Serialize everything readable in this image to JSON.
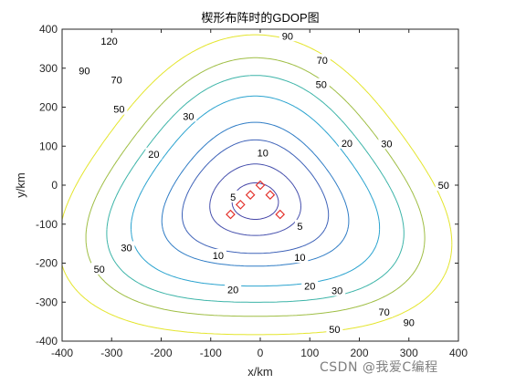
{
  "chart_data": {
    "type": "contour",
    "title": "楔形布阵时的GDOP图",
    "xlabel": "x/km",
    "ylabel": "y/km",
    "xlim": [
      -400,
      400
    ],
    "ylim": [
      -400,
      400
    ],
    "xticks": [
      -400,
      -300,
      -200,
      -100,
      0,
      100,
      200,
      300,
      400
    ],
    "yticks": [
      -400,
      -300,
      -200,
      -100,
      0,
      100,
      200,
      300,
      400
    ],
    "grid": false,
    "contour_levels": [
      5,
      10,
      20,
      30,
      50,
      70,
      90,
      120
    ],
    "level_colors": {
      "5": "#4646a8",
      "10": "#4650ad",
      "20": "#3e62b8",
      "30": "#2f7cc5",
      "50": "#2aa3cf",
      "70": "#3cb4a8",
      "90": "#9fbe44",
      "120": "#e4e52c"
    },
    "contour_labels": [
      {
        "level": 5,
        "x": -55,
        "y": -30,
        "text": "5"
      },
      {
        "level": 5,
        "x": 80,
        "y": -105,
        "text": "5"
      },
      {
        "level": 10,
        "x": 5,
        "y": 83,
        "text": "10"
      },
      {
        "level": 10,
        "x": -85,
        "y": -180,
        "text": "10"
      },
      {
        "level": 10,
        "x": 80,
        "y": -185,
        "text": "10"
      },
      {
        "level": 20,
        "x": -215,
        "y": 80,
        "text": "20"
      },
      {
        "level": 20,
        "x": 175,
        "y": 108,
        "text": "20"
      },
      {
        "level": 20,
        "x": -55,
        "y": -268,
        "text": "20"
      },
      {
        "level": 20,
        "x": 100,
        "y": -258,
        "text": "20"
      },
      {
        "level": 30,
        "x": -145,
        "y": 177,
        "text": "30"
      },
      {
        "level": 30,
        "x": 255,
        "y": 107,
        "text": "30"
      },
      {
        "level": 30,
        "x": -270,
        "y": -160,
        "text": "30"
      },
      {
        "level": 30,
        "x": 155,
        "y": -270,
        "text": "30"
      },
      {
        "level": 50,
        "x": -285,
        "y": 195,
        "text": "50"
      },
      {
        "level": 50,
        "x": 123,
        "y": 258,
        "text": "50"
      },
      {
        "level": 50,
        "x": 370,
        "y": 0,
        "text": "50"
      },
      {
        "level": 50,
        "x": -325,
        "y": -215,
        "text": "50"
      },
      {
        "level": 50,
        "x": 150,
        "y": -370,
        "text": "50"
      },
      {
        "level": 70,
        "x": -290,
        "y": 270,
        "text": "70"
      },
      {
        "level": 70,
        "x": 125,
        "y": 320,
        "text": "70"
      },
      {
        "level": 70,
        "x": 445,
        "y": 78,
        "text": "70"
      },
      {
        "level": 70,
        "x": -425,
        "y": -100,
        "text": "70"
      },
      {
        "level": 70,
        "x": 250,
        "y": -325,
        "text": "70"
      },
      {
        "level": 90,
        "x": -355,
        "y": 293,
        "text": "90"
      },
      {
        "level": 90,
        "x": 55,
        "y": 383,
        "text": "90"
      },
      {
        "level": 90,
        "x": 460,
        "y": 215,
        "text": "90"
      },
      {
        "level": 90,
        "x": -435,
        "y": -230,
        "text": "90"
      },
      {
        "level": 90,
        "x": 300,
        "y": -352,
        "text": "90"
      },
      {
        "level": 120,
        "x": -305,
        "y": 370,
        "text": "120"
      },
      {
        "level": 120,
        "x": 440,
        "y": 320,
        "text": "120"
      }
    ],
    "stations": {
      "marker": "diamond",
      "color": "#e3322c",
      "x": [
        0,
        -20,
        -40,
        -60,
        20,
        40
      ],
      "y": [
        0,
        -25,
        -50,
        -75,
        -25,
        -75
      ]
    }
  },
  "watermark": "CSDN @我爱C编程"
}
